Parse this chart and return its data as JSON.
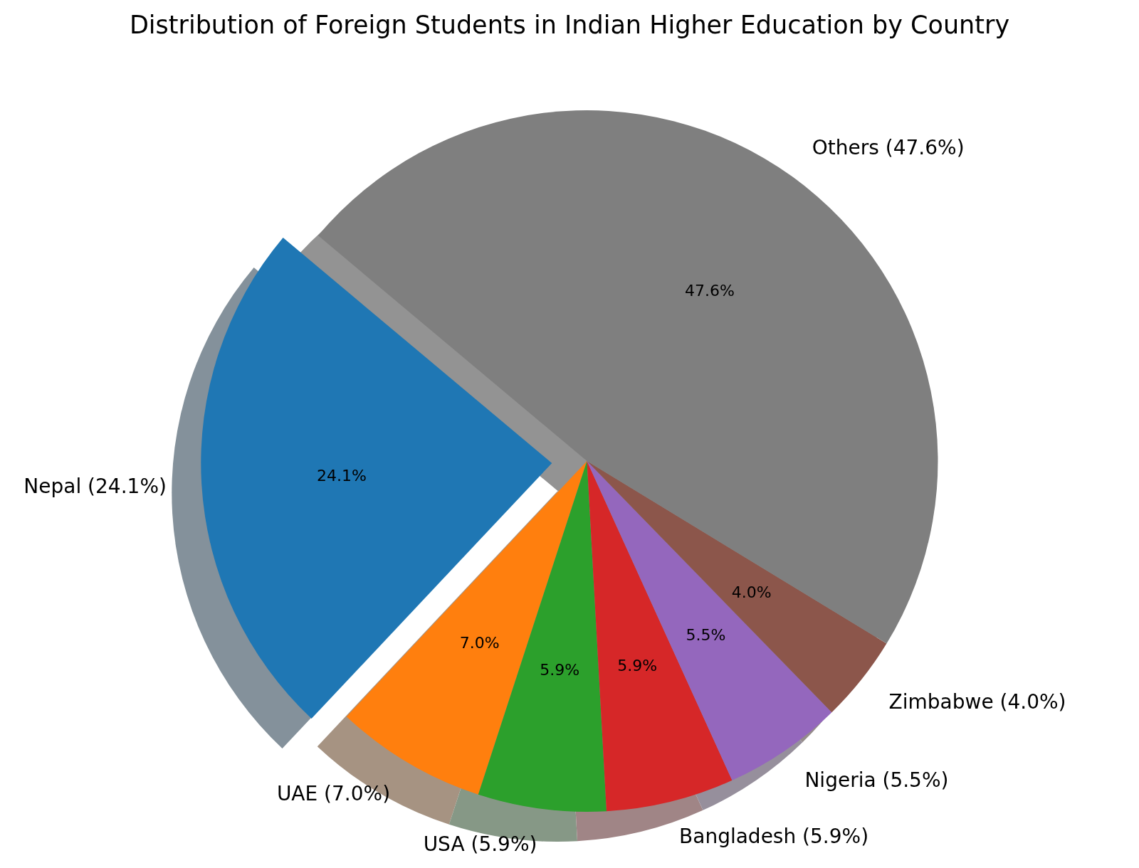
{
  "chart_data": {
    "type": "pie",
    "title": "Distribution of Foreign Students in Indian Higher Education by Country",
    "categories": [
      "Nepal (24.1%)",
      "UAE (7.0%)",
      "USA (5.9%)",
      "Bangladesh (5.9%)",
      "Nigeria (5.5%)",
      "Zimbabwe (4.0%)",
      "Others (47.6%)"
    ],
    "values": [
      24.1,
      7.0,
      5.9,
      5.9,
      5.5,
      4.0,
      47.6
    ],
    "colors": [
      "#1f77b4",
      "#ff7f0e",
      "#2ca02c",
      "#d62728",
      "#9467bd",
      "#8c564b",
      "#7f7f7f"
    ],
    "value_labels": [
      "24.1%",
      "7.0%",
      "5.9%",
      "5.9%",
      "5.5%",
      "4.0%",
      "47.6%"
    ]
  }
}
